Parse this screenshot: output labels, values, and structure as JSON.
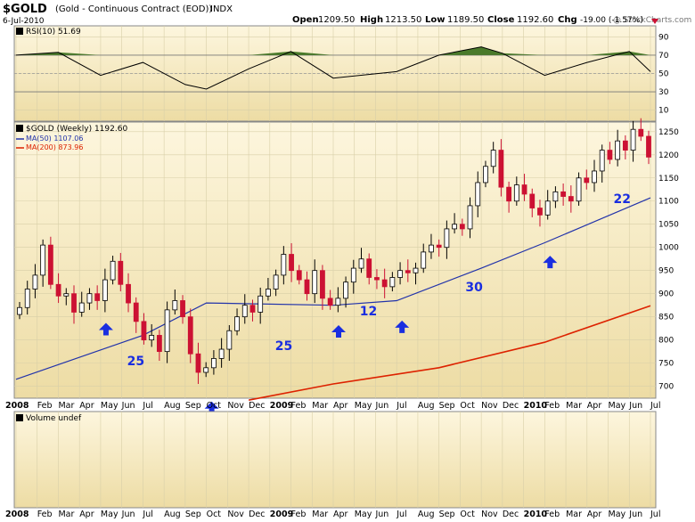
{
  "header": {
    "symbol": "$GOLD",
    "description": "(Gold - Continuous Contract (EOD))",
    "exchange": "INDX",
    "date": "6-Jul-2010",
    "watermark": "@ StockCharts.com",
    "open_label": "Open",
    "open": "1209.50",
    "high_label": "High",
    "high": "1213.50",
    "low_label": "Low",
    "low": "1189.50",
    "close_label": "Close",
    "close": "1192.60",
    "chg_label": "Chg",
    "chg": "-19.00 (-1.57%)"
  },
  "rsi_panel": {
    "label": "RSI(10) 51.69",
    "ticks": [
      90,
      70,
      50,
      30,
      10
    ],
    "overbought": 70,
    "oversold": 30
  },
  "price_panel": {
    "label": "$GOLD (Weekly) 1192.60",
    "ma50_label": "MA(50) 1107.06",
    "ma200_label": "MA(200) 873.96",
    "ticks": [
      1250,
      1200,
      1150,
      1100,
      1050,
      1000,
      950,
      900,
      850,
      800,
      750,
      700
    ],
    "annotations": [
      "25",
      "25",
      "12",
      "30",
      "22"
    ]
  },
  "volume_panel": {
    "label": "Volume undef"
  },
  "x_axis": {
    "labels": [
      "2008",
      "Feb",
      "Mar",
      "Apr",
      "May",
      "Jun",
      "Jul",
      "Aug",
      "Sep",
      "Oct",
      "Nov",
      "Dec",
      "2009",
      "Feb",
      "Mar",
      "Apr",
      "May",
      "Jun",
      "Jul",
      "Aug",
      "Sep",
      "Oct",
      "Nov",
      "Dec",
      "2010",
      "Feb",
      "Mar",
      "Apr",
      "May",
      "Jun",
      "Jul"
    ]
  },
  "colors": {
    "up": "#ffffff",
    "down": "#cc1133",
    "candle_outline": "#000000",
    "ma50": "#2233aa",
    "ma200": "#dd2200",
    "arrow": "#1a2ee0",
    "rsi_fill": "#4a7a2a",
    "panel_bg_top": "#fdf6de",
    "panel_bg_bottom": "#ecdca4"
  },
  "chart_data": {
    "type": "candlestick",
    "title": "$GOLD (Gold - Continuous Contract (EOD)) INDX",
    "interval": "weekly",
    "x_range": [
      "2008-01",
      "2010-07"
    ],
    "ylim": [
      680,
      1265
    ],
    "close_path": [
      [
        "2008-01",
        870
      ],
      [
        "2008-02",
        910
      ],
      [
        "2008-03",
        940
      ],
      [
        "2008-03",
        1005
      ],
      [
        "2008-03",
        920
      ],
      [
        "2008-04",
        895
      ],
      [
        "2008-04",
        900
      ],
      [
        "2008-05",
        860
      ],
      [
        "2008-05",
        880
      ],
      [
        "2008-06",
        900
      ],
      [
        "2008-06",
        885
      ],
      [
        "2008-07",
        930
      ],
      [
        "2008-07",
        970
      ],
      [
        "2008-07",
        920
      ],
      [
        "2008-08",
        880
      ],
      [
        "2008-08",
        840
      ],
      [
        "2008-08",
        800
      ],
      [
        "2008-09",
        810
      ],
      [
        "2008-09",
        775
      ],
      [
        "2008-09",
        865
      ],
      [
        "2008-10",
        885
      ],
      [
        "2008-10",
        850
      ],
      [
        "2008-10",
        770
      ],
      [
        "2008-10",
        730
      ],
      [
        "2008-11",
        740
      ],
      [
        "2008-11",
        760
      ],
      [
        "2008-11",
        780
      ],
      [
        "2008-12",
        820
      ],
      [
        "2008-12",
        850
      ],
      [
        "2008-12",
        875
      ],
      [
        "2009-01",
        860
      ],
      [
        "2009-01",
        895
      ],
      [
        "2009-01",
        910
      ],
      [
        "2009-02",
        940
      ],
      [
        "2009-02",
        985
      ],
      [
        "2009-02",
        950
      ],
      [
        "2009-03",
        930
      ],
      [
        "2009-03",
        900
      ],
      [
        "2009-03",
        950
      ],
      [
        "2009-04",
        890
      ],
      [
        "2009-04",
        875
      ],
      [
        "2009-04",
        890
      ],
      [
        "2009-05",
        925
      ],
      [
        "2009-05",
        955
      ],
      [
        "2009-06",
        975
      ],
      [
        "2009-06",
        935
      ],
      [
        "2009-06",
        930
      ],
      [
        "2009-07",
        915
      ],
      [
        "2009-07",
        935
      ],
      [
        "2009-08",
        950
      ],
      [
        "2009-08",
        945
      ],
      [
        "2009-08",
        955
      ],
      [
        "2009-09",
        990
      ],
      [
        "2009-09",
        1005
      ],
      [
        "2009-09",
        1000
      ],
      [
        "2009-10",
        1040
      ],
      [
        "2009-10",
        1050
      ],
      [
        "2009-10",
        1040
      ],
      [
        "2009-11",
        1090
      ],
      [
        "2009-11",
        1140
      ],
      [
        "2009-11",
        1175
      ],
      [
        "2009-12",
        1210
      ],
      [
        "2009-12",
        1130
      ],
      [
        "2009-12",
        1100
      ],
      [
        "2010-01",
        1135
      ],
      [
        "2010-01",
        1115
      ],
      [
        "2010-01",
        1085
      ],
      [
        "2010-02",
        1070
      ],
      [
        "2010-02",
        1100
      ],
      [
        "2010-02",
        1120
      ],
      [
        "2010-03",
        1110
      ],
      [
        "2010-03",
        1100
      ],
      [
        "2010-04",
        1150
      ],
      [
        "2010-04",
        1140
      ],
      [
        "2010-04",
        1165
      ],
      [
        "2010-05",
        1210
      ],
      [
        "2010-05",
        1190
      ],
      [
        "2010-05",
        1230
      ],
      [
        "2010-06",
        1210
      ],
      [
        "2010-06",
        1255
      ],
      [
        "2010-06",
        1240
      ],
      [
        "2010-07",
        1195
      ]
    ],
    "ma50": [
      [
        "2008-01",
        715
      ],
      [
        "2008-07",
        810
      ],
      [
        "2008-10",
        880
      ],
      [
        "2009-04",
        875
      ],
      [
        "2009-07",
        885
      ],
      [
        "2009-11",
        955
      ],
      [
        "2010-02",
        1010
      ],
      [
        "2010-07",
        1107
      ]
    ],
    "ma200": [
      [
        "2008-12",
        670
      ],
      [
        "2009-04",
        705
      ],
      [
        "2009-09",
        740
      ],
      [
        "2010-02",
        795
      ],
      [
        "2010-07",
        874
      ]
    ],
    "rsi": [
      [
        "2008-01",
        70
      ],
      [
        "2008-03",
        73
      ],
      [
        "2008-05",
        48
      ],
      [
        "2008-07",
        62
      ],
      [
        "2008-09",
        38
      ],
      [
        "2008-10",
        33
      ],
      [
        "2008-12",
        55
      ],
      [
        "2009-02",
        74
      ],
      [
        "2009-04",
        45
      ],
      [
        "2009-07",
        52
      ],
      [
        "2009-09",
        70
      ],
      [
        "2009-11",
        79
      ],
      [
        "2009-12",
        72
      ],
      [
        "2010-02",
        48
      ],
      [
        "2010-04",
        62
      ],
      [
        "2010-06",
        74
      ],
      [
        "2010-07",
        52
      ]
    ],
    "annotations": [
      {
        "text": "25",
        "x": "2008-06"
      },
      {
        "text": "25",
        "x": "2009-01"
      },
      {
        "text": "12",
        "x": "2009-05"
      },
      {
        "text": "30",
        "x": "2009-10"
      },
      {
        "text": "22",
        "x": "2010-05"
      }
    ],
    "arrows_at": [
      [
        "2008-05",
        860
      ],
      [
        "2008-10",
        690
      ],
      [
        "2009-04",
        855
      ],
      [
        "2009-07",
        865
      ],
      [
        "2010-02",
        1005
      ]
    ]
  }
}
